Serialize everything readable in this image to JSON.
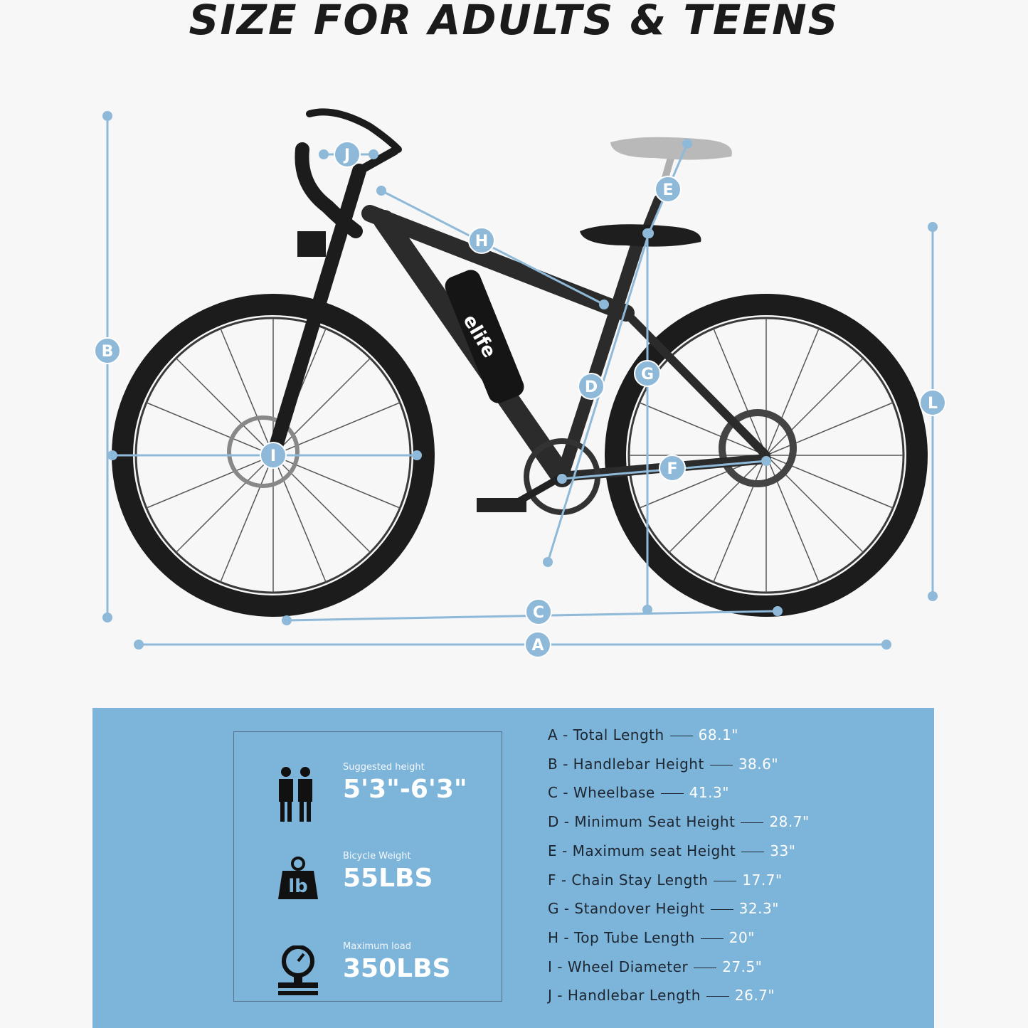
{
  "header": {
    "title": "SIZE FOR ADULTS & TEENS"
  },
  "diagram": {
    "brand": "elife",
    "markers": [
      {
        "label": "J"
      },
      {
        "label": "E"
      },
      {
        "label": "H"
      },
      {
        "label": "B"
      },
      {
        "label": "G"
      },
      {
        "label": "D"
      },
      {
        "label": "L"
      },
      {
        "label": "I"
      },
      {
        "label": "F"
      },
      {
        "label": "C"
      },
      {
        "label": "A"
      }
    ]
  },
  "stats": [
    {
      "label": "Suggested height",
      "value": "5'3\"-6'3\""
    },
    {
      "label": "Bicycle Weight",
      "value": "55LBS",
      "icon_text": "lb"
    },
    {
      "label": "Maximum load",
      "value": "350LBS"
    }
  ],
  "specs": [
    {
      "label": "A - Total Length",
      "value": "68.1\""
    },
    {
      "label": "B - Handlebar Height",
      "value": "38.6\""
    },
    {
      "label": "C - Wheelbase",
      "value": "41.3\""
    },
    {
      "label": "D - Minimum Seat Height",
      "value": "28.7\""
    },
    {
      "label": "E - Maximum seat Height",
      "value": "33\""
    },
    {
      "label": "F - Chain Stay Length",
      "value": "17.7\""
    },
    {
      "label": "G - Standover Height",
      "value": "32.3\""
    },
    {
      "label": "H - Top Tube Length",
      "value": "20\""
    },
    {
      "label": "I -  Wheel Diameter",
      "value": "27.5\""
    },
    {
      "label": "J - Handlebar Length",
      "value": "26.7\""
    }
  ]
}
